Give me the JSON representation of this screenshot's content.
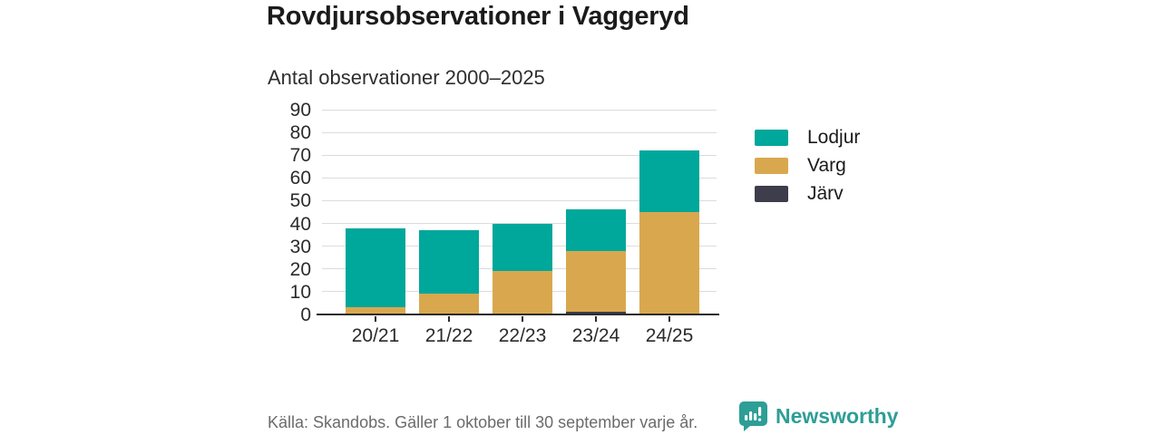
{
  "title": "Rovdjursobservationer i Vaggeryd",
  "subtitle": "Antal observationer 2000–2025",
  "chart_data": {
    "type": "bar",
    "stacked": true,
    "title": "Rovdjursobservationer i Vaggeryd",
    "subtitle": "Antal observationer 2000–2025",
    "categories": [
      "20/21",
      "21/22",
      "22/23",
      "23/24",
      "24/25"
    ],
    "series": [
      {
        "name": "Järv",
        "color": "#3d3d4b",
        "values": [
          0,
          0,
          0,
          1,
          0
        ]
      },
      {
        "name": "Varg",
        "color": "#d9a84e",
        "values": [
          3,
          9,
          19,
          27,
          45
        ]
      },
      {
        "name": "Lodjur",
        "color": "#00a79b",
        "values": [
          35,
          28,
          21,
          18,
          27
        ]
      }
    ],
    "totals": [
      38,
      37,
      40,
      46,
      72
    ],
    "ylim": [
      0,
      90
    ],
    "ytick_step": 10,
    "grid": true,
    "legend_position": "right"
  },
  "legend": {
    "items": [
      {
        "label": "Lodjur",
        "color": "#00a79b"
      },
      {
        "label": "Varg",
        "color": "#d9a84e"
      },
      {
        "label": "Järv",
        "color": "#3d3d4b"
      }
    ]
  },
  "footer": {
    "source": "Källa: Skandobs. Gäller 1 oktober till 30 september varje år.",
    "brand": "Newsworthy"
  },
  "colors": {
    "teal": "#00a79b",
    "gold": "#d9a84e",
    "dark": "#3d3d4b",
    "grid": "#dcdcdc",
    "axis": "#2b2b2b",
    "text": "#1a1a1a",
    "muted": "#6b6b6b",
    "brand": "#2e9e96"
  }
}
